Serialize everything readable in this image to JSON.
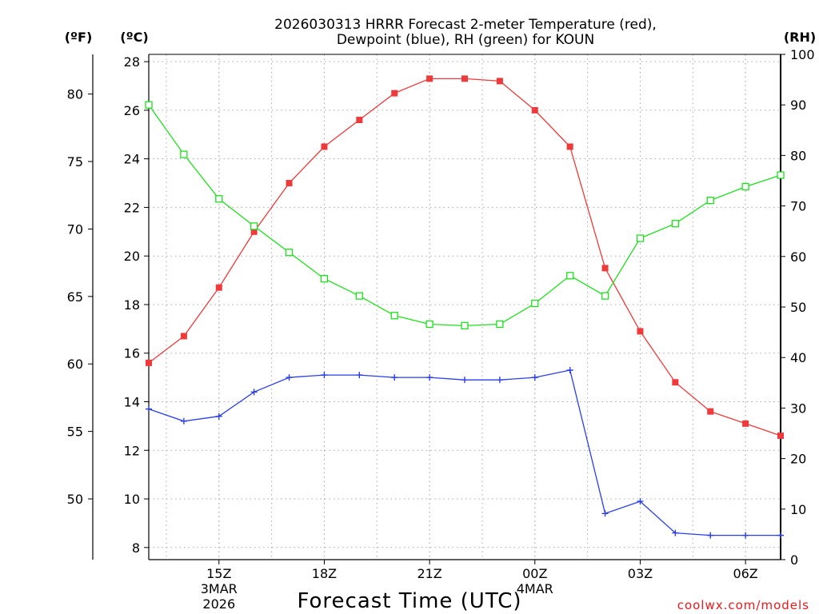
{
  "chart_data": {
    "type": "line",
    "title_lines": [
      "2026030313 HRRR Forecast 2-meter Temperature (red),",
      "Dewpoint (blue), RH (green) for KOUN"
    ],
    "units": {
      "fahrenheit": "(ºF)",
      "celsius": "(ºC)",
      "rh": "(RH)"
    },
    "xlabel": "Forecast Time (UTC)",
    "credit": "coolwx.com/models",
    "x_hours": [
      13,
      14,
      15,
      16,
      17,
      18,
      19,
      20,
      21,
      22,
      23,
      24,
      25,
      26,
      27,
      28,
      29,
      30,
      31
    ],
    "xlim": [
      13,
      31
    ],
    "x_ticks": [
      {
        "hour": 15,
        "lines": [
          "15Z",
          "3MAR",
          "2026"
        ]
      },
      {
        "hour": 18,
        "lines": [
          "18Z"
        ]
      },
      {
        "hour": 21,
        "lines": [
          "21Z"
        ]
      },
      {
        "hour": 24,
        "lines": [
          "00Z",
          "4MAR"
        ]
      },
      {
        "hour": 27,
        "lines": [
          "03Z"
        ]
      },
      {
        "hour": 30,
        "lines": [
          "06Z"
        ]
      }
    ],
    "celsius_axis": {
      "range": [
        7.5,
        28.3
      ],
      "ticks": [
        8,
        10,
        12,
        14,
        16,
        18,
        20,
        22,
        24,
        26,
        28
      ]
    },
    "fahrenheit_axis": {
      "ticks": [
        50,
        55,
        60,
        65,
        70,
        75,
        80
      ]
    },
    "rh_axis": {
      "range": [
        0,
        100
      ],
      "ticks": [
        0,
        10,
        20,
        30,
        40,
        50,
        60,
        70,
        80,
        90,
        100
      ]
    },
    "series": [
      {
        "name": "Temperature",
        "axis": "celsius",
        "color": "#ee3a3a",
        "marker": "filled-square",
        "values": [
          15.6,
          16.7,
          18.7,
          21.0,
          23.0,
          24.5,
          25.6,
          26.7,
          27.3,
          27.3,
          27.2,
          26.0,
          24.5,
          19.5,
          16.9,
          14.8,
          13.6,
          13.1,
          12.6
        ]
      },
      {
        "name": "Dewpoint",
        "axis": "celsius",
        "color": "#2a3fe8",
        "marker": "plus",
        "values": [
          13.7,
          13.2,
          13.4,
          14.4,
          15.0,
          15.1,
          15.1,
          15.0,
          15.0,
          14.9,
          14.9,
          15.0,
          15.3,
          9.4,
          9.9,
          8.6,
          8.5,
          8.5,
          8.5
        ]
      },
      {
        "name": "RH",
        "axis": "rh",
        "color": "#1ee01e",
        "marker": "open-square",
        "values": [
          90.0,
          80.2,
          71.4,
          66.0,
          60.8,
          55.6,
          52.2,
          48.3,
          46.6,
          46.3,
          46.6,
          50.7,
          56.2,
          52.2,
          63.6,
          66.5,
          71.1,
          73.8,
          76.1
        ]
      }
    ]
  }
}
